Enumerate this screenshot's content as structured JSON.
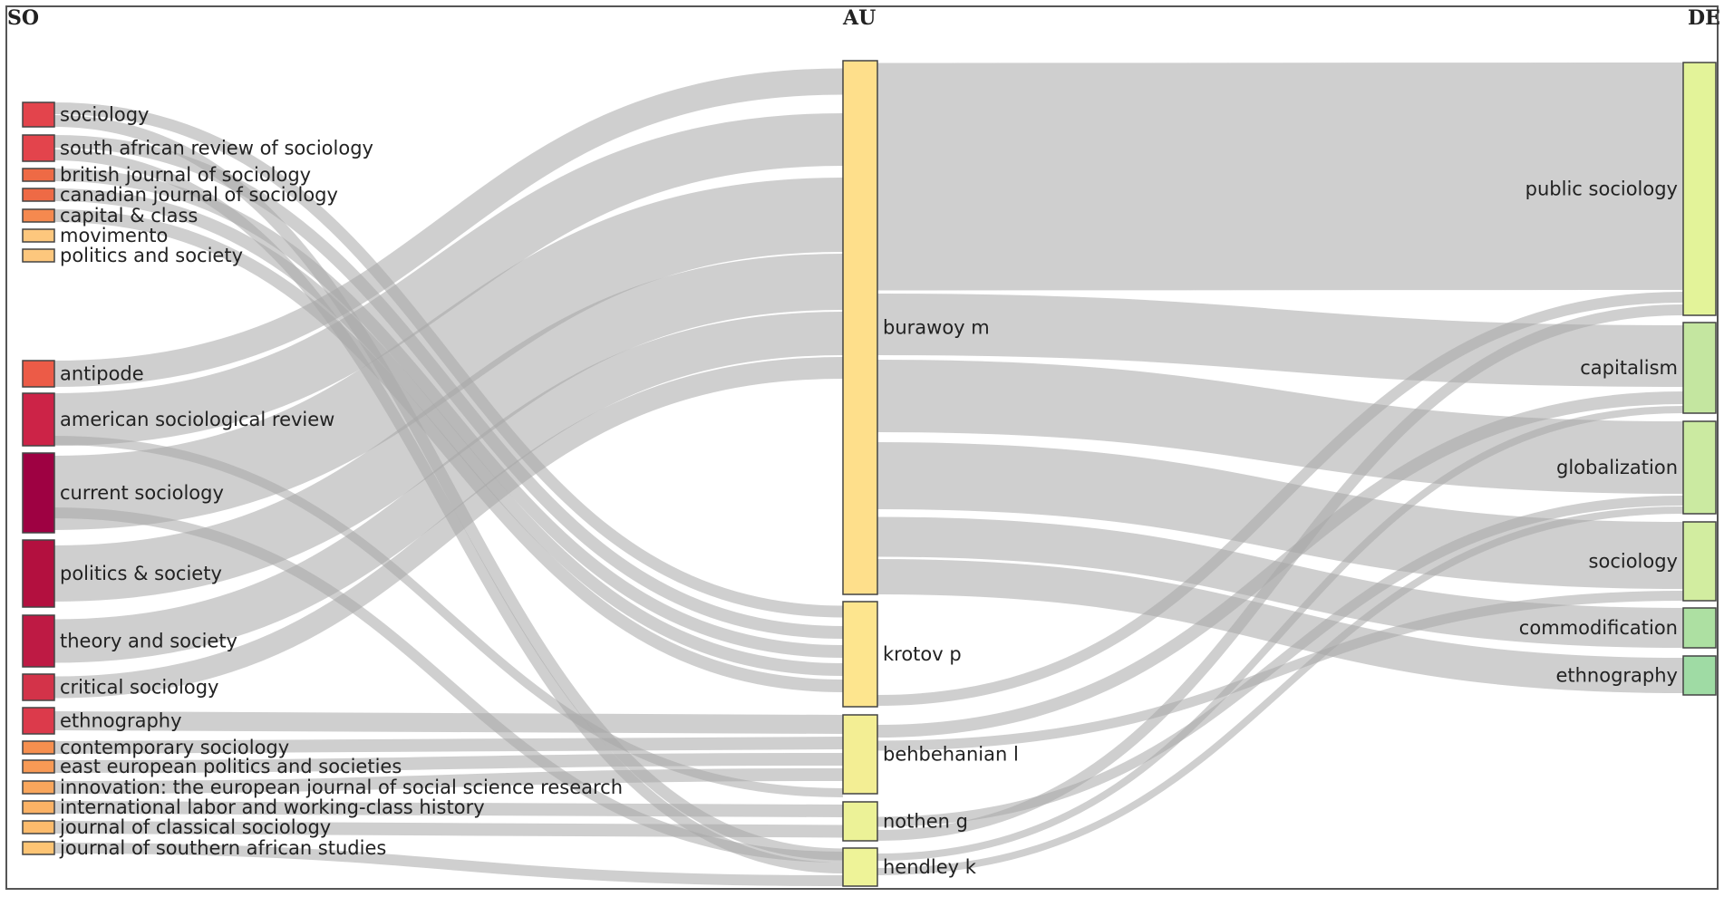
{
  "columns": [
    "SO",
    "AU",
    "DE"
  ],
  "source_nodes": [
    {
      "id": "s1",
      "label": "sociology",
      "color": "#e3444c"
    },
    {
      "id": "s2",
      "label": "south african review of sociology",
      "color": "#e3444c"
    },
    {
      "id": "s3",
      "label": "british journal of sociology",
      "color": "#ee6a45"
    },
    {
      "id": "s4",
      "label": "canadian journal of sociology",
      "color": "#ee6a45"
    },
    {
      "id": "s5",
      "label": "capital & class",
      "color": "#f5894f"
    },
    {
      "id": "s6",
      "label": "movimento",
      "color": "#fdc77d"
    },
    {
      "id": "s7",
      "label": "politics and society",
      "color": "#fdc77d"
    },
    {
      "id": "s8",
      "label": "antipode",
      "color": "#ec5b47"
    },
    {
      "id": "s9",
      "label": "american sociological review",
      "color": "#cc2347"
    },
    {
      "id": "s10",
      "label": "current sociology",
      "color": "#9e0142"
    },
    {
      "id": "s11",
      "label": "politics & society",
      "color": "#b3103f"
    },
    {
      "id": "s12",
      "label": "theory and society",
      "color": "#be1a44"
    },
    {
      "id": "s13",
      "label": "critical sociology",
      "color": "#d33349"
    },
    {
      "id": "s14",
      "label": "ethnography",
      "color": "#dc3a4b"
    },
    {
      "id": "s15",
      "label": "contemporary sociology",
      "color": "#f68f4f"
    },
    {
      "id": "s16",
      "label": "east european politics and societies",
      "color": "#f89a55"
    },
    {
      "id": "s17",
      "label": "innovation: the european journal of social science research",
      "color": "#f9a65c"
    },
    {
      "id": "s18",
      "label": "international labor and working-class history",
      "color": "#fbb265"
    },
    {
      "id": "s19",
      "label": "journal of classical sociology",
      "color": "#fcbb6c"
    },
    {
      "id": "s20",
      "label": "journal of southern african studies",
      "color": "#fdc474"
    }
  ],
  "author_nodes": [
    {
      "id": "a1",
      "label": "burawoy m",
      "color": "#fedf8b"
    },
    {
      "id": "a2",
      "label": "krotov p",
      "color": "#fde58e"
    },
    {
      "id": "a3",
      "label": "behbehanian l",
      "color": "#f3ee94"
    },
    {
      "id": "a4",
      "label": "nothen g",
      "color": "#ecf297"
    },
    {
      "id": "a5",
      "label": "hendley k",
      "color": "#eef398"
    }
  ],
  "keyword_nodes": [
    {
      "id": "d1",
      "label": "public sociology",
      "color": "#e3f399"
    },
    {
      "id": "d2",
      "label": "capitalism",
      "color": "#c4e6a0"
    },
    {
      "id": "d3",
      "label": "globalization",
      "color": "#cbeaa1"
    },
    {
      "id": "d4",
      "label": "sociology",
      "color": "#d2eda0"
    },
    {
      "id": "d5",
      "label": "commodification",
      "color": "#ade0a2"
    },
    {
      "id": "d6",
      "label": "ethnography",
      "color": "#9fdba4"
    }
  ]
}
